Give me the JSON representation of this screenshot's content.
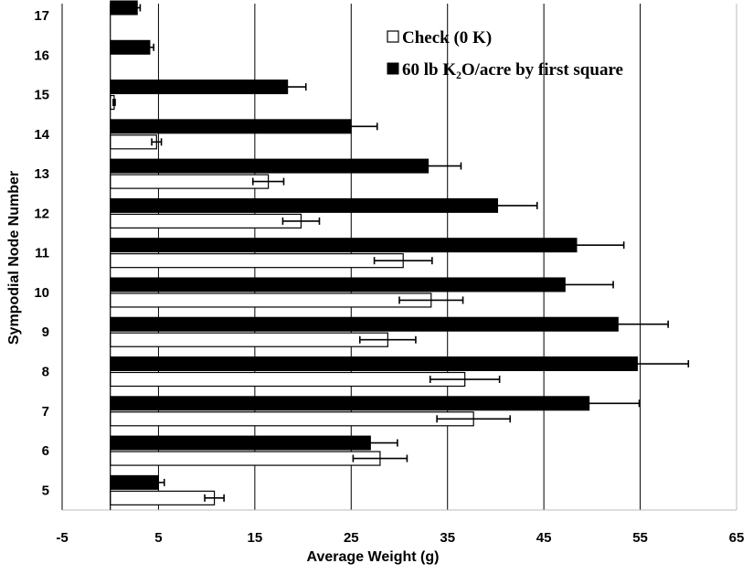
{
  "chart_data": {
    "type": "bar",
    "orientation": "horizontal",
    "ylabel": "Sympodial Node Number",
    "xlabel": "Average Weight (g)",
    "categories": [
      "5",
      "6",
      "7",
      "8",
      "9",
      "10",
      "11",
      "12",
      "13",
      "14",
      "15",
      "16",
      "17"
    ],
    "xlim": [
      -5,
      65
    ],
    "xticks": [
      "-5",
      "5",
      "15",
      "25",
      "35",
      "45",
      "55",
      "65"
    ],
    "grid": "vertical",
    "legend_position": "top-right",
    "series": [
      {
        "name": "Check (0 K)",
        "color": "#ffffff",
        "values": [
          10.8,
          28,
          37.7,
          36.8,
          28.8,
          33.3,
          30.4,
          19.8,
          16.4,
          4.8,
          0.4,
          null,
          null
        ],
        "errors": [
          1.0,
          2.8,
          3.8,
          3.6,
          2.9,
          3.3,
          3.0,
          1.9,
          1.6,
          0.5,
          0.1,
          null,
          null
        ]
      },
      {
        "name": "60 lb K₂O/acre by first square",
        "color": "#000000",
        "values": [
          5,
          27,
          49.7,
          54.7,
          52.7,
          47.2,
          48.4,
          40.2,
          33,
          25,
          18.4,
          4.1,
          2.8
        ],
        "errors": [
          0.6,
          2.8,
          5.2,
          5.3,
          5.2,
          5.0,
          4.9,
          4.1,
          3.4,
          2.7,
          1.9,
          0.4,
          0.3
        ]
      }
    ]
  }
}
